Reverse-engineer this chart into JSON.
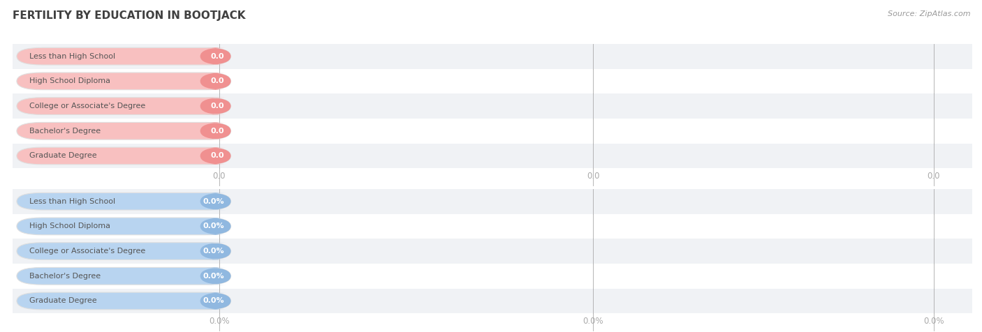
{
  "title": "FERTILITY BY EDUCATION IN BOOTJACK",
  "source": "Source: ZipAtlas.com",
  "categories": [
    "Less than High School",
    "High School Diploma",
    "College or Associate's Degree",
    "Bachelor's Degree",
    "Graduate Degree"
  ],
  "top_values": [
    0.0,
    0.0,
    0.0,
    0.0,
    0.0
  ],
  "bottom_values": [
    0.0,
    0.0,
    0.0,
    0.0,
    0.0
  ],
  "top_bar_color": "#f09090",
  "top_label_bg": "#f8c0c0",
  "bottom_bar_color": "#90b8e0",
  "bottom_label_bg": "#b8d4f0",
  "row_bg_odd": "#f0f2f5",
  "row_bg_even": "#ffffff",
  "tick_color": "#aaaaaa",
  "label_text_color": "#555555",
  "value_text_color": "#ffffff",
  "tick_text_color": "#aaaaaa",
  "background_color": "#ffffff",
  "title_fontsize": 11,
  "source_fontsize": 8,
  "bar_label_fontsize": 8,
  "tick_fontsize": 8.5
}
